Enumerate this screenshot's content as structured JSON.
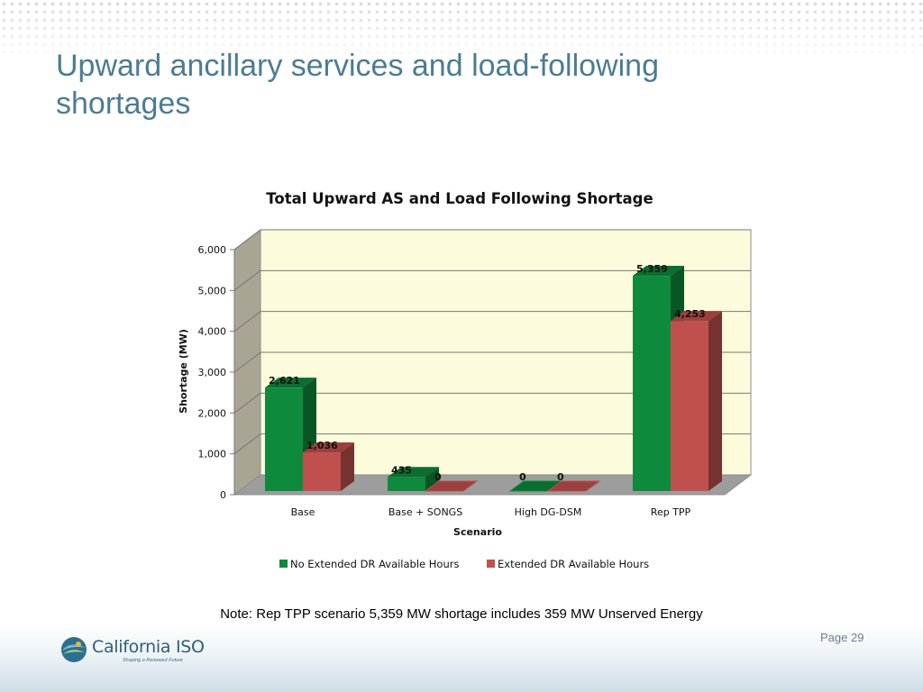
{
  "slide": {
    "title": "Upward ancillary services and load-following shortages",
    "note": "Note: Rep TPP scenario 5,359 MW shortage includes 359 MW Unserved Energy",
    "page": "Page 29",
    "logo": {
      "name": "California ISO",
      "tagline": "Shaping a Renewed Future"
    }
  },
  "chart_data": {
    "type": "bar",
    "title": "Total Upward AS and Load Following Shortage",
    "xlabel": "Scenario",
    "ylabel": "Shortage (MW)",
    "categories": [
      "Base",
      "Base + SONGS",
      "High DG-DSM",
      "Rep TPP"
    ],
    "ylim": [
      0,
      6000
    ],
    "yticks": [
      "0",
      "1,000",
      "2,000",
      "3,000",
      "4,000",
      "5,000",
      "6,000"
    ],
    "grid": true,
    "legend_position": "bottom",
    "style": "3d-clustered-column",
    "series": [
      {
        "name": "No Extended DR Available Hours",
        "values": [
          2621,
          435,
          0,
          5359
        ],
        "labels": [
          "2,621",
          "435",
          "0",
          "5,359"
        ],
        "color": "#0e8a3c"
      },
      {
        "name": "Extended DR Available Hours",
        "values": [
          1036,
          0,
          0,
          4253
        ],
        "labels": [
          "1,036",
          "0",
          "0",
          "4,253"
        ],
        "color": "#c0504d"
      }
    ],
    "colors": {
      "plot_background": "#fcfcdc",
      "side_wall": "#a8a595",
      "floor": "#9d9d9d"
    }
  }
}
